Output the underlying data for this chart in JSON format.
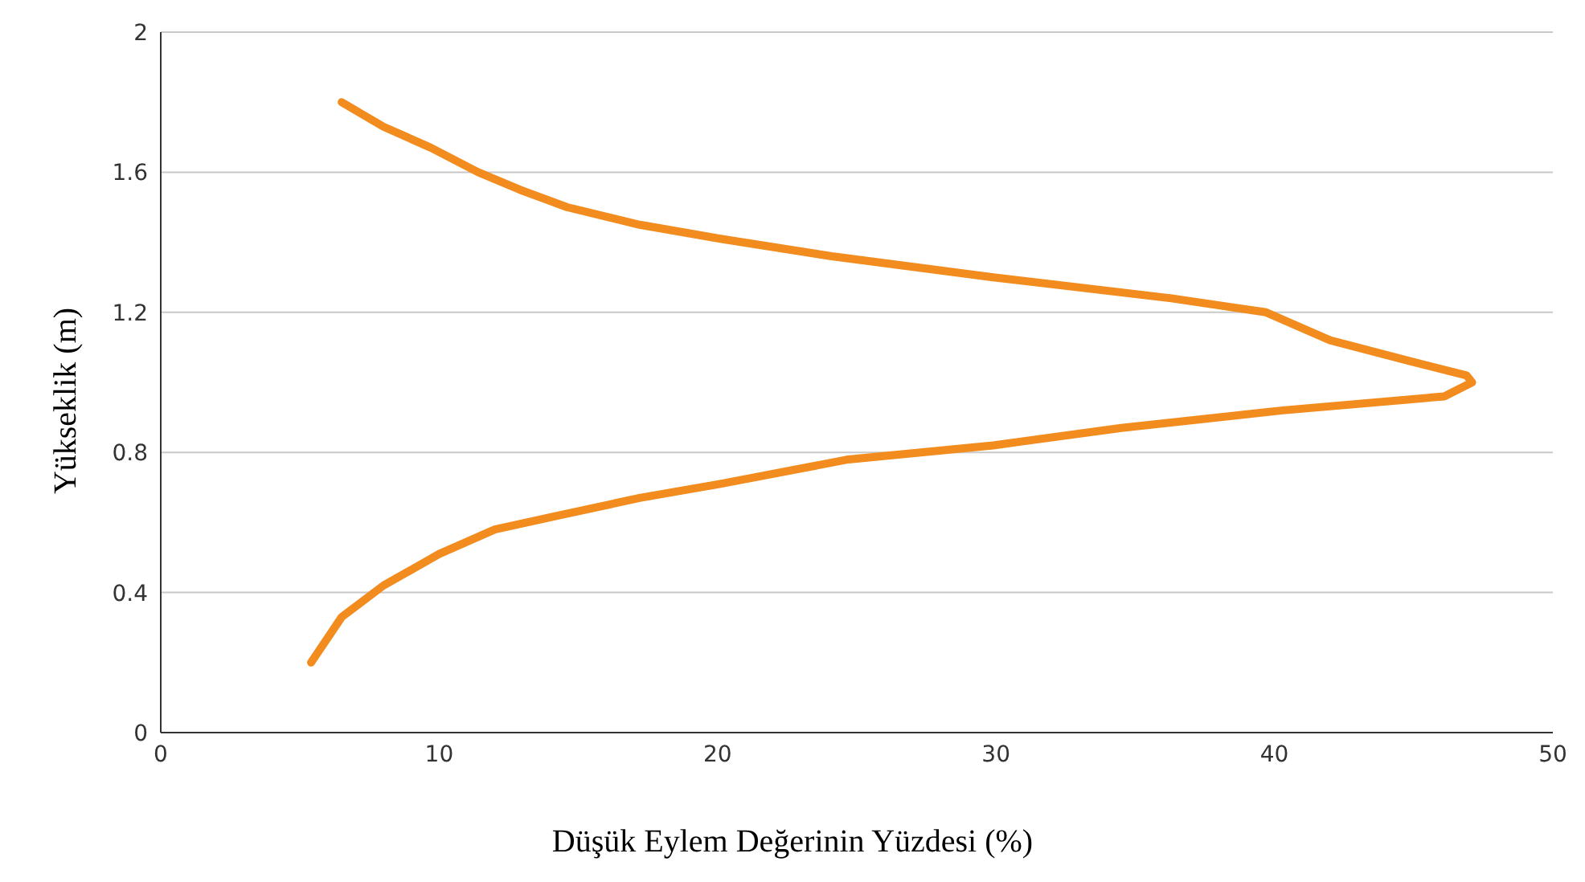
{
  "chart_data": {
    "type": "line",
    "xlabel": "Düşük Eylem Değerinin Yüzdesi (%)",
    "ylabel": "Yükseklik (m)",
    "series": [
      {
        "color": "#f28c1e",
        "x": [
          5.4,
          6.5,
          8.0,
          10.0,
          12.0,
          14.3,
          17.2,
          20.1,
          24.7,
          29.9,
          34.5,
          40.3,
          46.1,
          47.1,
          46.9,
          44.9,
          42.0,
          39.7,
          36.3,
          29.9,
          24.1,
          20.1,
          17.2,
          14.6,
          12.9,
          11.4,
          9.7,
          8.0,
          6.5
        ],
        "values": [
          0.2,
          0.33,
          0.42,
          0.51,
          0.58,
          0.62,
          0.67,
          0.71,
          0.78,
          0.82,
          0.87,
          0.92,
          0.96,
          1.0,
          1.02,
          1.06,
          1.12,
          1.2,
          1.24,
          1.3,
          1.36,
          1.41,
          1.45,
          1.5,
          1.55,
          1.6,
          1.67,
          1.73,
          1.8
        ]
      }
    ],
    "xlim": [
      0,
      50
    ],
    "xticks": [
      0,
      10,
      20,
      30,
      40,
      50
    ],
    "ylim": [
      0,
      2
    ],
    "yticks": [
      0,
      0.4,
      0.8,
      1.2,
      1.6,
      2
    ],
    "grid": "y",
    "marker": "none",
    "line_style": "solid"
  }
}
